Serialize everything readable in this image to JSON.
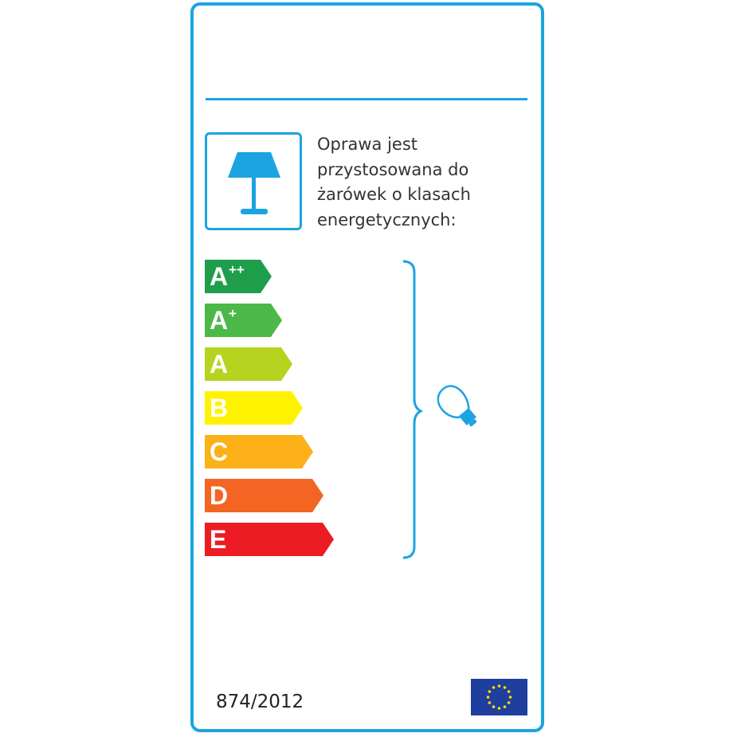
{
  "label": {
    "description_lines": [
      "Oprawa jest",
      "przystosowana do",
      "żarówek o klasach",
      "energetycznych:"
    ],
    "regulation": "874/2012",
    "classes": [
      {
        "letter": "A",
        "sup": "++",
        "color": "#1e9e4a"
      },
      {
        "letter": "A",
        "sup": "+",
        "color": "#4cb848"
      },
      {
        "letter": "A",
        "sup": "",
        "color": "#b6d31f"
      },
      {
        "letter": "B",
        "sup": "",
        "color": "#fff200"
      },
      {
        "letter": "C",
        "sup": "",
        "color": "#fbb117"
      },
      {
        "letter": "D",
        "sup": "",
        "color": "#f26522"
      },
      {
        "letter": "E",
        "sup": "",
        "color": "#ed1c24"
      }
    ],
    "accent_color": "#1ba4e1",
    "icons": [
      "table-lamp-icon",
      "light-bulb-icon",
      "eu-flag-icon"
    ]
  }
}
